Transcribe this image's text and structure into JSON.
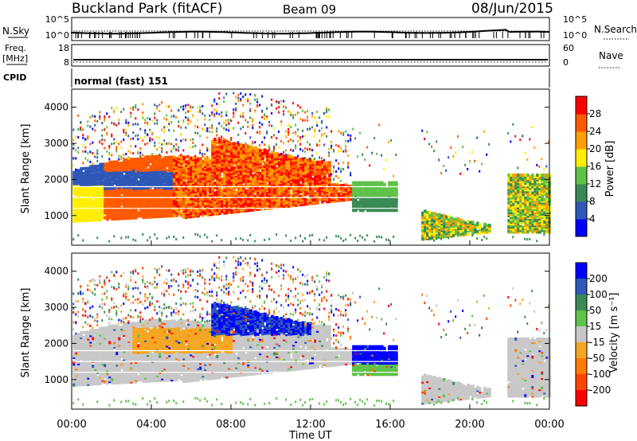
{
  "header": {
    "station": "Buckland Park (fitACF)",
    "beam": "Beam 09",
    "date": "08/Jun/2015"
  },
  "colors": {
    "power_scale": [
      "#0000ff",
      "#2e57b8",
      "#3a8a55",
      "#5fc24a",
      "#ffee00",
      "#ff9e00",
      "#ff5a00",
      "#ff0000"
    ],
    "velocity_scale": [
      "#0000ff",
      "#2e57b8",
      "#3a8a55",
      "#5fc24a",
      "#c8c8c8",
      "#f5a623",
      "#ff7a00",
      "#ff4500",
      "#ff0000"
    ]
  },
  "chart_data": [
    {
      "type": "line",
      "panel": "noise",
      "left_label": "N.Sky",
      "right_label": "N.Search",
      "left_ticks": [
        "10^5",
        "10^0"
      ],
      "right_ticks": [
        "10^5",
        "10^0"
      ]
    },
    {
      "type": "line",
      "panel": "frequency",
      "left_label_1": "Freq.",
      "left_label_2": "[MHz]",
      "right_label": "Nave",
      "left_ticks": [
        "18",
        "8"
      ],
      "right_ticks": [
        "60",
        "0"
      ]
    },
    {
      "type": "text",
      "panel": "cpid",
      "label": "CPID",
      "value": "normal (fast) 151"
    },
    {
      "type": "heatmap",
      "panel": "power",
      "ylabel": "Slant Range [km]",
      "yticks": [
        "4000",
        "3000",
        "2000",
        "1000"
      ],
      "ylim": [
        180,
        4500
      ],
      "colorbar_label": "Power [dB]",
      "colorbar_ticks": [
        "28",
        "24",
        "20",
        "16",
        "12",
        "8",
        "4"
      ],
      "colorbar_range": [
        0,
        32
      ]
    },
    {
      "type": "heatmap",
      "panel": "velocity",
      "ylabel": "Slant Range [km]",
      "yticks": [
        "4000",
        "3000",
        "2000",
        "1000"
      ],
      "ylim": [
        180,
        4500
      ],
      "colorbar_label": "Velocity [m s⁻¹]",
      "colorbar_ticks": [
        "200",
        "100",
        "50",
        "15",
        "-15",
        "-50",
        "-100",
        "-200"
      ],
      "xlabel": "Time UT",
      "xticks": [
        "00:00",
        "04:00",
        "08:00",
        "12:00",
        "16:00",
        "20:00",
        "00:00"
      ],
      "xlim_hours": [
        0,
        24
      ]
    }
  ]
}
